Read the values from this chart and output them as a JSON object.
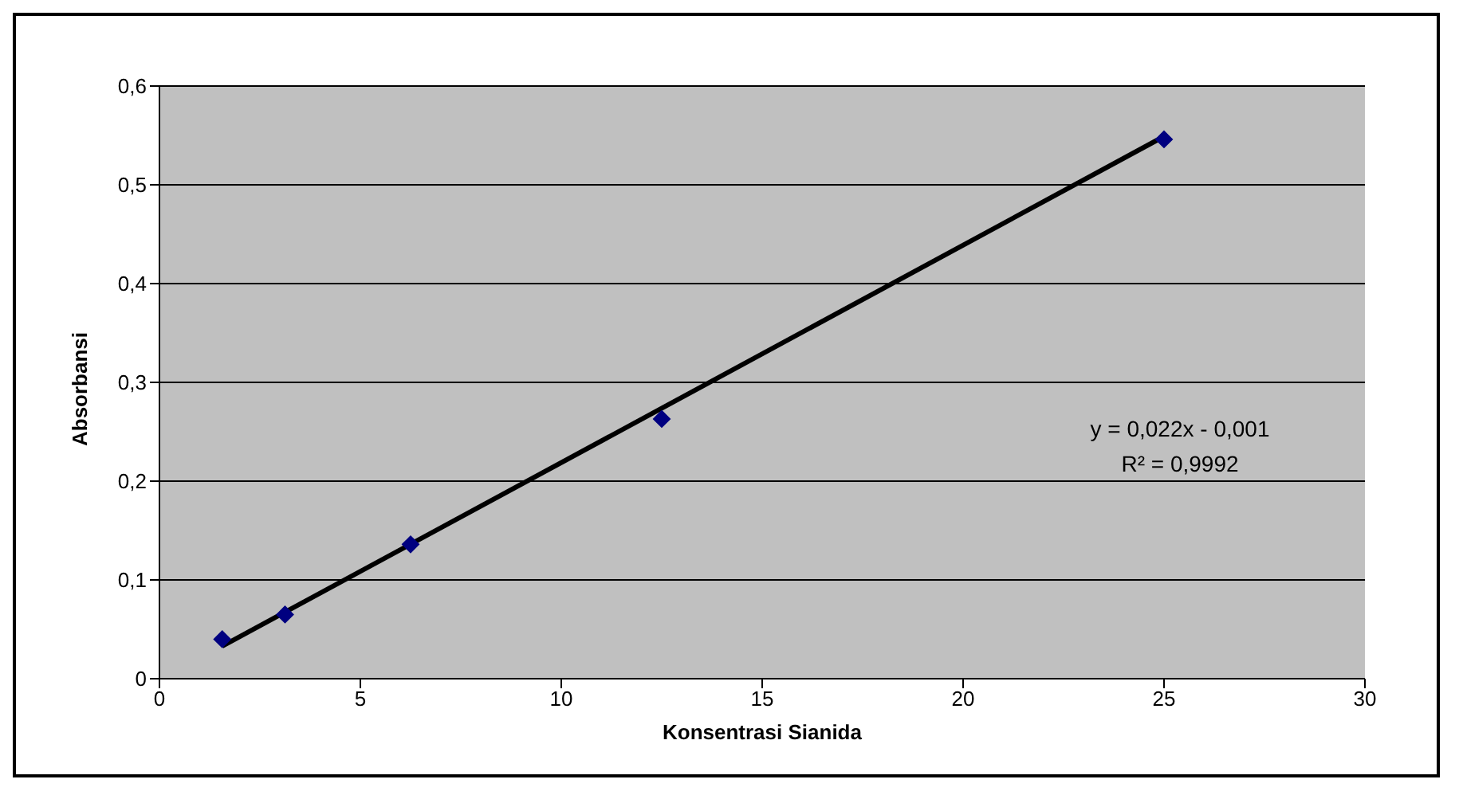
{
  "chart_data": {
    "type": "scatter",
    "xlabel": "Konsentrasi Sianida",
    "ylabel": "Absorbansi",
    "xlim": [
      0,
      30
    ],
    "xticks": [
      0,
      5,
      10,
      15,
      20,
      25,
      30
    ],
    "ylim": [
      0,
      0.6
    ],
    "yticks": [
      0,
      {
        "value": 0.1,
        "label": "0,1"
      },
      {
        "value": 0.2,
        "label": "0,2"
      },
      {
        "value": 0.3,
        "label": "0,3"
      },
      {
        "value": 0.4,
        "label": "0,4"
      },
      {
        "value": 0.5,
        "label": "0,5"
      },
      {
        "value": 0.6,
        "label": "0,6"
      }
    ],
    "grid": "y",
    "legend": false,
    "series": [
      {
        "type": "scatter",
        "color": "#000080",
        "marker": "diamond",
        "x": [
          1.5625,
          3.125,
          6.25,
          12.5,
          25
        ],
        "values": [
          0.04,
          0.065,
          0.136,
          0.263,
          0.546
        ]
      },
      {
        "type": "line",
        "color": "#000000",
        "marker": "none",
        "x": [
          1.5625,
          25
        ],
        "values": [
          0.033,
          0.549
        ]
      }
    ],
    "annotations": [
      "y = 0,022x - 0,001",
      "R² = 0,9992"
    ]
  }
}
